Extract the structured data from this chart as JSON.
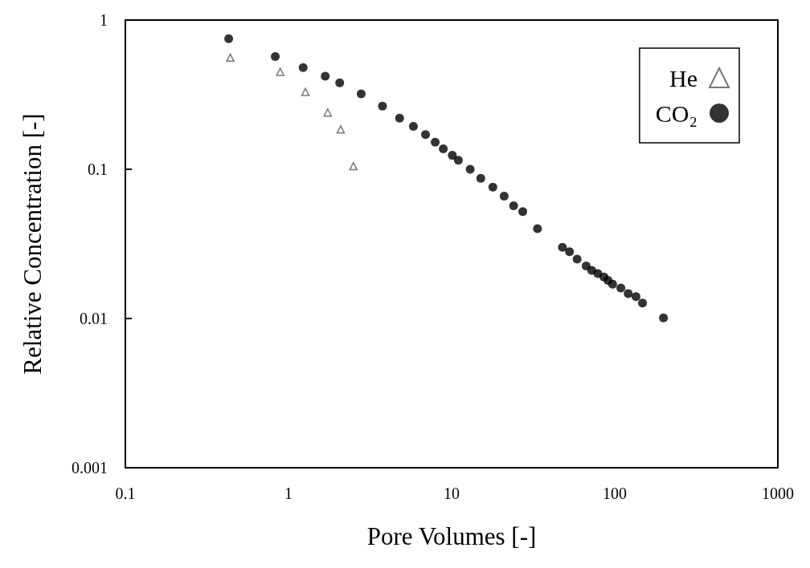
{
  "chart_data": {
    "type": "scatter",
    "xlabel": "Pore Volumes [-]",
    "ylabel": "Relative Concentration [-]",
    "log": "xy",
    "grid": false,
    "legend": "top right",
    "xlim": [
      0.1,
      1000
    ],
    "xticks": [
      0.1,
      1,
      10,
      100,
      1000
    ],
    "ylim": [
      0.001,
      1
    ],
    "yticks": [
      0.001,
      0.01,
      0.1,
      1
    ],
    "series": [
      {
        "name": "He",
        "color": "#555555",
        "marker": "triangle",
        "x": [
          0.44,
          0.89,
          1.27,
          1.74,
          2.09,
          2.5
        ],
        "values": [
          0.56,
          0.45,
          0.33,
          0.24,
          0.185,
          0.105
        ]
      },
      {
        "name": "CO₂",
        "color": "#000000",
        "marker": "circle",
        "x": [
          0.43,
          0.83,
          1.23,
          1.68,
          2.06,
          2.79,
          3.77,
          4.8,
          5.83,
          6.92,
          7.93,
          8.89,
          10.1,
          11,
          13,
          15.1,
          17.9,
          21,
          24,
          27.3,
          33.6,
          47.8,
          52.8,
          58.8,
          66.8,
          72.3,
          78.8,
          85.9,
          91,
          97,
          109,
          121,
          135,
          148,
          199
        ],
        "values": [
          0.75,
          0.57,
          0.48,
          0.42,
          0.38,
          0.32,
          0.265,
          0.22,
          0.194,
          0.171,
          0.152,
          0.137,
          0.124,
          0.115,
          0.1,
          0.087,
          0.076,
          0.066,
          0.057,
          0.052,
          0.04,
          0.03,
          0.028,
          0.025,
          0.0225,
          0.021,
          0.02,
          0.019,
          0.018,
          0.017,
          0.016,
          0.0147,
          0.014,
          0.0127,
          0.0101
        ]
      }
    ]
  }
}
